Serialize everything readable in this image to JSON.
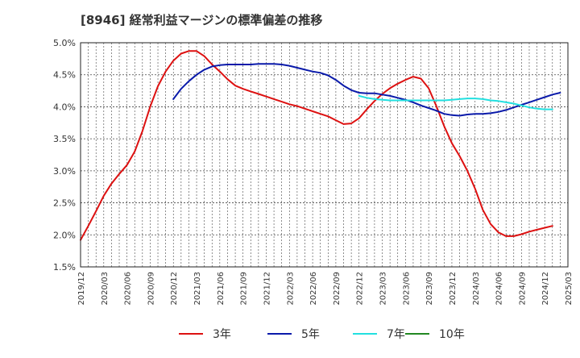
{
  "chart_data": {
    "type": "line",
    "title": "[8946]  経常利益マージンの標準偏差の推移",
    "xlabel": "",
    "ylabel": "",
    "ylim": [
      1.5,
      5.0
    ],
    "grid": true,
    "legend_position": "bottom",
    "y_ticks": [
      "1.5%",
      "2.0%",
      "2.5%",
      "3.0%",
      "3.5%",
      "4.0%",
      "4.5%",
      "5.0%"
    ],
    "x_ticks": [
      "2019/12",
      "2020/03",
      "2020/06",
      "2020/09",
      "2020/12",
      "2021/03",
      "2021/06",
      "2021/09",
      "2021/12",
      "2022/03",
      "2022/06",
      "2022/09",
      "2022/12",
      "2023/03",
      "2023/06",
      "2023/09",
      "2023/12",
      "2024/03",
      "2024/06",
      "2024/09",
      "2024/12",
      "2025/03"
    ],
    "series": [
      {
        "name": "3年",
        "color": "#dd1111",
        "points": [
          [
            "2019/12",
            1.92
          ],
          [
            "2020/01",
            2.14
          ],
          [
            "2020/02",
            2.37
          ],
          [
            "2020/03",
            2.61
          ],
          [
            "2020/04",
            2.8
          ],
          [
            "2020/05",
            2.95
          ],
          [
            "2020/06",
            3.09
          ],
          [
            "2020/07",
            3.3
          ],
          [
            "2020/08",
            3.62
          ],
          [
            "2020/09",
            4.0
          ],
          [
            "2020/10",
            4.32
          ],
          [
            "2020/11",
            4.55
          ],
          [
            "2020/12",
            4.72
          ],
          [
            "2021/01",
            4.83
          ],
          [
            "2021/02",
            4.87
          ],
          [
            "2021/03",
            4.87
          ],
          [
            "2021/04",
            4.79
          ],
          [
            "2021/05",
            4.66
          ],
          [
            "2021/06",
            4.55
          ],
          [
            "2021/07",
            4.43
          ],
          [
            "2021/08",
            4.33
          ],
          [
            "2021/09",
            4.28
          ],
          [
            "2021/10",
            4.24
          ],
          [
            "2021/11",
            4.2
          ],
          [
            "2021/12",
            4.16
          ],
          [
            "2022/01",
            4.12
          ],
          [
            "2022/02",
            4.08
          ],
          [
            "2022/03",
            4.04
          ],
          [
            "2022/04",
            4.01
          ],
          [
            "2022/05",
            3.97
          ],
          [
            "2022/06",
            3.93
          ],
          [
            "2022/07",
            3.89
          ],
          [
            "2022/08",
            3.85
          ],
          [
            "2022/09",
            3.79
          ],
          [
            "2022/10",
            3.73
          ],
          [
            "2022/11",
            3.74
          ],
          [
            "2022/12",
            3.82
          ],
          [
            "2023/01",
            3.96
          ],
          [
            "2023/02",
            4.09
          ],
          [
            "2023/03",
            4.2
          ],
          [
            "2023/04",
            4.29
          ],
          [
            "2023/05",
            4.36
          ],
          [
            "2023/06",
            4.42
          ],
          [
            "2023/07",
            4.47
          ],
          [
            "2023/08",
            4.44
          ],
          [
            "2023/09",
            4.29
          ],
          [
            "2023/10",
            4.01
          ],
          [
            "2023/11",
            3.7
          ],
          [
            "2023/12",
            3.43
          ],
          [
            "2024/01",
            3.23
          ],
          [
            "2024/02",
            3.0
          ],
          [
            "2024/03",
            2.72
          ],
          [
            "2024/04",
            2.39
          ],
          [
            "2024/05",
            2.17
          ],
          [
            "2024/06",
            2.04
          ],
          [
            "2024/07",
            1.98
          ],
          [
            "2024/08",
            1.98
          ],
          [
            "2024/09",
            2.01
          ],
          [
            "2024/10",
            2.05
          ],
          [
            "2024/11",
            2.08
          ],
          [
            "2024/12",
            2.11
          ],
          [
            "2025/01",
            2.14
          ]
        ]
      },
      {
        "name": "5年",
        "color": "#0a1aaa",
        "points": [
          [
            "2020/12",
            4.12
          ],
          [
            "2021/01",
            4.28
          ],
          [
            "2021/02",
            4.4
          ],
          [
            "2021/03",
            4.5
          ],
          [
            "2021/04",
            4.58
          ],
          [
            "2021/05",
            4.63
          ],
          [
            "2021/06",
            4.65
          ],
          [
            "2021/07",
            4.66
          ],
          [
            "2021/08",
            4.66
          ],
          [
            "2021/09",
            4.66
          ],
          [
            "2021/10",
            4.66
          ],
          [
            "2021/11",
            4.67
          ],
          [
            "2021/12",
            4.67
          ],
          [
            "2022/01",
            4.67
          ],
          [
            "2022/02",
            4.66
          ],
          [
            "2022/03",
            4.64
          ],
          [
            "2022/04",
            4.61
          ],
          [
            "2022/05",
            4.58
          ],
          [
            "2022/06",
            4.55
          ],
          [
            "2022/07",
            4.53
          ],
          [
            "2022/08",
            4.49
          ],
          [
            "2022/09",
            4.42
          ],
          [
            "2022/10",
            4.33
          ],
          [
            "2022/11",
            4.26
          ],
          [
            "2022/12",
            4.22
          ],
          [
            "2023/01",
            4.21
          ],
          [
            "2023/02",
            4.21
          ],
          [
            "2023/03",
            4.19
          ],
          [
            "2023/04",
            4.17
          ],
          [
            "2023/05",
            4.14
          ],
          [
            "2023/06",
            4.11
          ],
          [
            "2023/07",
            4.07
          ],
          [
            "2023/08",
            4.02
          ],
          [
            "2023/09",
            3.98
          ],
          [
            "2023/10",
            3.94
          ],
          [
            "2023/11",
            3.89
          ],
          [
            "2023/12",
            3.87
          ],
          [
            "2024/01",
            3.86
          ],
          [
            "2024/02",
            3.88
          ],
          [
            "2024/03",
            3.89
          ],
          [
            "2024/04",
            3.89
          ],
          [
            "2024/05",
            3.9
          ],
          [
            "2024/06",
            3.92
          ],
          [
            "2024/07",
            3.95
          ],
          [
            "2024/08",
            3.99
          ],
          [
            "2024/09",
            4.03
          ],
          [
            "2024/10",
            4.07
          ],
          [
            "2024/11",
            4.11
          ],
          [
            "2024/12",
            4.15
          ],
          [
            "2025/01",
            4.19
          ],
          [
            "2025/02",
            4.22
          ]
        ]
      },
      {
        "name": "7年",
        "color": "#22e0e0",
        "points": [
          [
            "2022/12",
            4.17
          ],
          [
            "2023/01",
            4.14
          ],
          [
            "2023/02",
            4.12
          ],
          [
            "2023/03",
            4.11
          ],
          [
            "2023/04",
            4.1
          ],
          [
            "2023/05",
            4.1
          ],
          [
            "2023/06",
            4.1
          ],
          [
            "2023/07",
            4.1
          ],
          [
            "2023/08",
            4.1
          ],
          [
            "2023/09",
            4.1
          ],
          [
            "2023/10",
            4.1
          ],
          [
            "2023/11",
            4.1
          ],
          [
            "2023/12",
            4.11
          ],
          [
            "2024/01",
            4.12
          ],
          [
            "2024/02",
            4.13
          ],
          [
            "2024/03",
            4.13
          ],
          [
            "2024/04",
            4.12
          ],
          [
            "2024/05",
            4.1
          ],
          [
            "2024/06",
            4.09
          ],
          [
            "2024/07",
            4.07
          ],
          [
            "2024/08",
            4.05
          ],
          [
            "2024/09",
            4.02
          ],
          [
            "2024/10",
            3.99
          ],
          [
            "2024/11",
            3.97
          ],
          [
            "2024/12",
            3.96
          ],
          [
            "2025/01",
            3.96
          ]
        ]
      },
      {
        "name": "10年",
        "color": "#228822",
        "points": []
      }
    ]
  }
}
